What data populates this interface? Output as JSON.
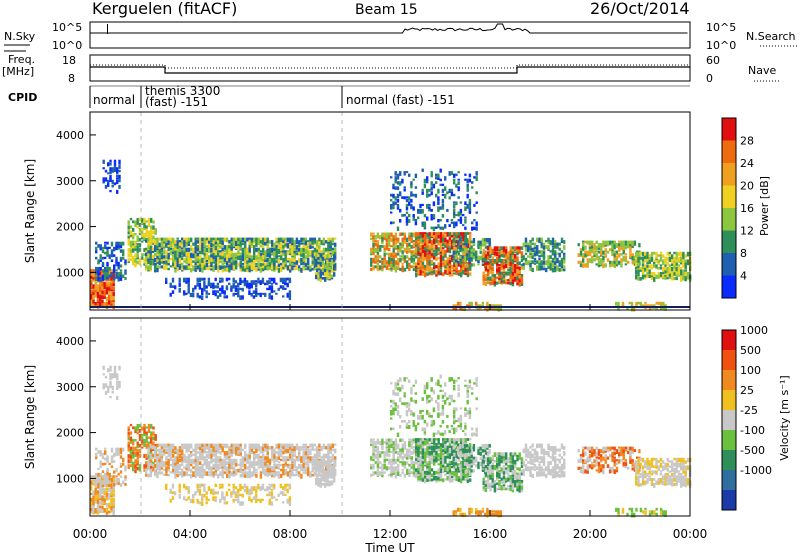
{
  "header": {
    "station": "Kerguelen (fitACF)",
    "beam": "Beam 15",
    "date": "26/Oct/2014"
  },
  "nsky_panel": {
    "left_label": "N.Sky",
    "left_ticks": [
      "10^5",
      "10^0"
    ],
    "right_label": "N.Search",
    "right_ticks": [
      "10^5",
      "10^0"
    ]
  },
  "freq_panel": {
    "left_label_line1": "Freq.",
    "left_label_line2": "[MHz]",
    "left_ticks": [
      "18",
      "8"
    ],
    "right_label": "Nave",
    "right_ticks": [
      "60",
      "0"
    ]
  },
  "cpid_panel": {
    "label": "CPID",
    "segments": [
      "normal",
      "themis 3300",
      "(fast) -151",
      "normal (fast) -151"
    ]
  },
  "power_panel": {
    "ylabel": "Slant Range [km]",
    "yticks": [
      "4000",
      "3000",
      "2000",
      "1000"
    ],
    "colorbar_label": "Power [dB]",
    "colorbar_ticks": [
      "28",
      "24",
      "20",
      "16",
      "12",
      "8",
      "4"
    ],
    "colors": [
      "#0a2bff",
      "#1e5fb0",
      "#2f8f5a",
      "#8cc63f",
      "#f0d020",
      "#f0a020",
      "#f06a10",
      "#e01010"
    ]
  },
  "velocity_panel": {
    "ylabel": "Slant Range [km]",
    "yticks": [
      "4000",
      "3000",
      "2000",
      "1000"
    ],
    "colorbar_label": "Velocity [m s⁻¹]",
    "colorbar_ticks": [
      "1000",
      "500",
      "100",
      "25",
      "-25",
      "-100",
      "-500",
      "-1000"
    ],
    "colors": [
      "#1a3aa8",
      "#2e6fa0",
      "#2f8f5a",
      "#6cc040",
      "#c8c8c8",
      "#f0c020",
      "#f08a20",
      "#f05010",
      "#e01010"
    ]
  },
  "time_axis": {
    "label": "Time UT",
    "ticks": [
      "00:00",
      "04:00",
      "08:00",
      "12:00",
      "16:00",
      "20:00",
      "00:00"
    ]
  },
  "chart_data": [
    {
      "type": "line",
      "title": "Kerguelen (fitACF) Beam 15",
      "panel": "N.Sky / N.Search",
      "x": [
        "00:00",
        "04:00",
        "08:00",
        "12:00",
        "16:00",
        "20:00",
        "00:00"
      ],
      "yscale": "log",
      "ylim": [
        "10^0",
        "10^5"
      ]
    },
    {
      "type": "line",
      "panel": "Freq / Nave",
      "x": [
        "00:00",
        "02:50",
        "16:50",
        "24:00"
      ],
      "series": [
        {
          "name": "Freq.",
          "values": [
            12.5,
            10.5,
            12.5,
            12.5
          ]
        },
        {
          "name": "Nave",
          "values": [
            21,
            19,
            21,
            21
          ]
        }
      ],
      "ylim": [
        8,
        18
      ]
    },
    {
      "type": "heatmap",
      "panel": "Power",
      "xlabel": "Time UT",
      "ylabel": "Slant Range [km]",
      "xlim": [
        "00:00",
        "24:00"
      ],
      "ylim": [
        180,
        4500
      ],
      "colorbar": "Power [dB]",
      "clim": [
        0,
        32
      ]
    },
    {
      "type": "heatmap",
      "panel": "Velocity",
      "xlabel": "Time UT",
      "ylabel": "Slant Range [km]",
      "xlim": [
        "00:00",
        "24:00"
      ],
      "ylim": [
        180,
        4500
      ],
      "colorbar": "Velocity [m s⁻¹]",
      "clim": [
        -1000,
        1000
      ]
    }
  ]
}
